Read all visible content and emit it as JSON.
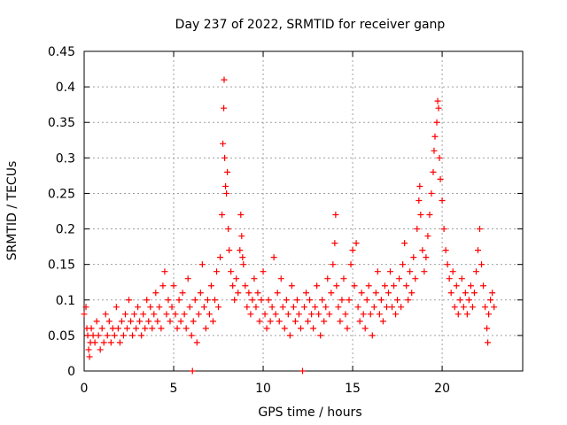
{
  "chart_data": {
    "type": "scatter",
    "title": "Day 237 of 2022, SRMTID for receiver ganp",
    "xlabel": "GPS time / hours",
    "ylabel": "SRMTID / TECUs",
    "xlim": [
      0,
      24.5
    ],
    "ylim": [
      0,
      0.45
    ],
    "x_ticks": [
      0,
      5,
      10,
      15,
      20
    ],
    "x_tick_labels": [
      "0",
      "5",
      "10",
      "15",
      "20"
    ],
    "y_ticks": [
      0,
      0.05,
      0.1,
      0.15,
      0.2,
      0.25,
      0.3,
      0.35,
      0.4,
      0.45
    ],
    "y_tick_labels": [
      "0",
      "0.05",
      "0.1",
      "0.15",
      "0.2",
      "0.25",
      "0.3",
      "0.35",
      "0.4",
      "0.45"
    ],
    "grid": true,
    "marker": "+",
    "color": "#ff0000",
    "series": [
      {
        "name": "SRMTID",
        "points": [
          [
            0.0,
            0.08
          ],
          [
            0.1,
            0.09
          ],
          [
            0.15,
            0.06
          ],
          [
            0.2,
            0.05
          ],
          [
            0.25,
            0.03
          ],
          [
            0.3,
            0.02
          ],
          [
            0.35,
            0.04
          ],
          [
            0.4,
            0.06
          ],
          [
            0.5,
            0.05
          ],
          [
            0.6,
            0.04
          ],
          [
            0.7,
            0.07
          ],
          [
            0.8,
            0.05
          ],
          [
            0.9,
            0.03
          ],
          [
            1.0,
            0.06
          ],
          [
            1.1,
            0.04
          ],
          [
            1.2,
            0.08
          ],
          [
            1.3,
            0.05
          ],
          [
            1.4,
            0.07
          ],
          [
            1.5,
            0.04
          ],
          [
            1.6,
            0.06
          ],
          [
            1.7,
            0.05
          ],
          [
            1.8,
            0.09
          ],
          [
            1.9,
            0.06
          ],
          [
            2.0,
            0.04
          ],
          [
            2.1,
            0.07
          ],
          [
            2.2,
            0.05
          ],
          [
            2.3,
            0.08
          ],
          [
            2.4,
            0.06
          ],
          [
            2.5,
            0.1
          ],
          [
            2.6,
            0.07
          ],
          [
            2.7,
            0.05
          ],
          [
            2.8,
            0.08
          ],
          [
            2.9,
            0.06
          ],
          [
            3.0,
            0.09
          ],
          [
            3.1,
            0.07
          ],
          [
            3.2,
            0.05
          ],
          [
            3.3,
            0.08
          ],
          [
            3.4,
            0.06
          ],
          [
            3.5,
            0.1
          ],
          [
            3.6,
            0.07
          ],
          [
            3.7,
            0.09
          ],
          [
            3.8,
            0.06
          ],
          [
            3.9,
            0.08
          ],
          [
            4.0,
            0.11
          ],
          [
            4.1,
            0.07
          ],
          [
            4.2,
            0.09
          ],
          [
            4.3,
            0.06
          ],
          [
            4.4,
            0.12
          ],
          [
            4.5,
            0.14
          ],
          [
            4.6,
            0.08
          ],
          [
            4.7,
            0.1
          ],
          [
            4.8,
            0.07
          ],
          [
            4.9,
            0.09
          ],
          [
            5.0,
            0.12
          ],
          [
            5.1,
            0.08
          ],
          [
            5.2,
            0.06
          ],
          [
            5.3,
            0.1
          ],
          [
            5.4,
            0.07
          ],
          [
            5.5,
            0.11
          ],
          [
            5.6,
            0.08
          ],
          [
            5.7,
            0.06
          ],
          [
            5.8,
            0.13
          ],
          [
            5.9,
            0.09
          ],
          [
            6.0,
            0.05
          ],
          [
            6.05,
            0.0
          ],
          [
            6.1,
            0.07
          ],
          [
            6.2,
            0.1
          ],
          [
            6.3,
            0.04
          ],
          [
            6.4,
            0.08
          ],
          [
            6.5,
            0.11
          ],
          [
            6.6,
            0.15
          ],
          [
            6.7,
            0.09
          ],
          [
            6.8,
            0.06
          ],
          [
            6.9,
            0.1
          ],
          [
            7.0,
            0.08
          ],
          [
            7.1,
            0.12
          ],
          [
            7.2,
            0.07
          ],
          [
            7.3,
            0.1
          ],
          [
            7.4,
            0.14
          ],
          [
            7.5,
            0.09
          ],
          [
            7.6,
            0.16
          ],
          [
            7.7,
            0.22
          ],
          [
            7.75,
            0.32
          ],
          [
            7.8,
            0.37
          ],
          [
            7.82,
            0.41
          ],
          [
            7.85,
            0.3
          ],
          [
            7.9,
            0.26
          ],
          [
            7.95,
            0.25
          ],
          [
            8.0,
            0.28
          ],
          [
            8.05,
            0.2
          ],
          [
            8.1,
            0.17
          ],
          [
            8.2,
            0.14
          ],
          [
            8.3,
            0.12
          ],
          [
            8.4,
            0.1
          ],
          [
            8.5,
            0.13
          ],
          [
            8.6,
            0.11
          ],
          [
            8.7,
            0.17
          ],
          [
            8.75,
            0.22
          ],
          [
            8.8,
            0.19
          ],
          [
            8.85,
            0.16
          ],
          [
            8.9,
            0.15
          ],
          [
            9.0,
            0.12
          ],
          [
            9.1,
            0.09
          ],
          [
            9.2,
            0.11
          ],
          [
            9.3,
            0.08
          ],
          [
            9.4,
            0.1
          ],
          [
            9.5,
            0.13
          ],
          [
            9.6,
            0.09
          ],
          [
            9.7,
            0.11
          ],
          [
            9.8,
            0.07
          ],
          [
            9.9,
            0.1
          ],
          [
            10.0,
            0.14
          ],
          [
            10.1,
            0.08
          ],
          [
            10.2,
            0.06
          ],
          [
            10.3,
            0.1
          ],
          [
            10.4,
            0.07
          ],
          [
            10.5,
            0.09
          ],
          [
            10.6,
            0.16
          ],
          [
            10.7,
            0.08
          ],
          [
            10.8,
            0.11
          ],
          [
            10.9,
            0.07
          ],
          [
            11.0,
            0.13
          ],
          [
            11.1,
            0.09
          ],
          [
            11.2,
            0.06
          ],
          [
            11.3,
            0.1
          ],
          [
            11.4,
            0.08
          ],
          [
            11.5,
            0.05
          ],
          [
            11.6,
            0.12
          ],
          [
            11.7,
            0.09
          ],
          [
            11.8,
            0.07
          ],
          [
            11.9,
            0.1
          ],
          [
            12.0,
            0.08
          ],
          [
            12.1,
            0.06
          ],
          [
            12.2,
            0.0
          ],
          [
            12.3,
            0.09
          ],
          [
            12.4,
            0.11
          ],
          [
            12.5,
            0.07
          ],
          [
            12.6,
            0.1
          ],
          [
            12.7,
            0.08
          ],
          [
            12.8,
            0.06
          ],
          [
            12.9,
            0.09
          ],
          [
            13.0,
            0.12
          ],
          [
            13.1,
            0.08
          ],
          [
            13.2,
            0.05
          ],
          [
            13.3,
            0.1
          ],
          [
            13.4,
            0.07
          ],
          [
            13.5,
            0.09
          ],
          [
            13.6,
            0.13
          ],
          [
            13.7,
            0.08
          ],
          [
            13.8,
            0.11
          ],
          [
            13.9,
            0.15
          ],
          [
            14.0,
            0.18
          ],
          [
            14.05,
            0.22
          ],
          [
            14.1,
            0.12
          ],
          [
            14.2,
            0.09
          ],
          [
            14.3,
            0.07
          ],
          [
            14.4,
            0.1
          ],
          [
            14.5,
            0.13
          ],
          [
            14.6,
            0.08
          ],
          [
            14.7,
            0.06
          ],
          [
            14.8,
            0.1
          ],
          [
            14.9,
            0.15
          ],
          [
            15.0,
            0.17
          ],
          [
            15.1,
            0.12
          ],
          [
            15.2,
            0.18
          ],
          [
            15.3,
            0.09
          ],
          [
            15.4,
            0.07
          ],
          [
            15.5,
            0.11
          ],
          [
            15.6,
            0.08
          ],
          [
            15.7,
            0.06
          ],
          [
            15.8,
            0.1
          ],
          [
            15.9,
            0.12
          ],
          [
            16.0,
            0.08
          ],
          [
            16.1,
            0.05
          ],
          [
            16.2,
            0.09
          ],
          [
            16.3,
            0.11
          ],
          [
            16.4,
            0.14
          ],
          [
            16.5,
            0.08
          ],
          [
            16.6,
            0.1
          ],
          [
            16.7,
            0.07
          ],
          [
            16.8,
            0.12
          ],
          [
            16.9,
            0.09
          ],
          [
            17.0,
            0.11
          ],
          [
            17.1,
            0.14
          ],
          [
            17.2,
            0.09
          ],
          [
            17.3,
            0.12
          ],
          [
            17.4,
            0.08
          ],
          [
            17.5,
            0.1
          ],
          [
            17.6,
            0.13
          ],
          [
            17.7,
            0.09
          ],
          [
            17.8,
            0.15
          ],
          [
            17.9,
            0.18
          ],
          [
            18.0,
            0.12
          ],
          [
            18.1,
            0.1
          ],
          [
            18.2,
            0.14
          ],
          [
            18.3,
            0.11
          ],
          [
            18.4,
            0.16
          ],
          [
            18.5,
            0.13
          ],
          [
            18.6,
            0.2
          ],
          [
            18.7,
            0.24
          ],
          [
            18.75,
            0.26
          ],
          [
            18.8,
            0.22
          ],
          [
            18.9,
            0.17
          ],
          [
            19.0,
            0.14
          ],
          [
            19.1,
            0.16
          ],
          [
            19.2,
            0.19
          ],
          [
            19.3,
            0.22
          ],
          [
            19.4,
            0.25
          ],
          [
            19.5,
            0.28
          ],
          [
            19.55,
            0.31
          ],
          [
            19.6,
            0.33
          ],
          [
            19.7,
            0.35
          ],
          [
            19.75,
            0.38
          ],
          [
            19.8,
            0.37
          ],
          [
            19.85,
            0.3
          ],
          [
            19.9,
            0.27
          ],
          [
            20.0,
            0.24
          ],
          [
            20.1,
            0.2
          ],
          [
            20.2,
            0.17
          ],
          [
            20.3,
            0.15
          ],
          [
            20.4,
            0.13
          ],
          [
            20.5,
            0.11
          ],
          [
            20.6,
            0.14
          ],
          [
            20.7,
            0.09
          ],
          [
            20.8,
            0.12
          ],
          [
            20.9,
            0.08
          ],
          [
            21.0,
            0.1
          ],
          [
            21.1,
            0.13
          ],
          [
            21.2,
            0.09
          ],
          [
            21.3,
            0.11
          ],
          [
            21.4,
            0.08
          ],
          [
            21.5,
            0.1
          ],
          [
            21.6,
            0.12
          ],
          [
            21.7,
            0.09
          ],
          [
            21.8,
            0.11
          ],
          [
            21.9,
            0.14
          ],
          [
            22.0,
            0.17
          ],
          [
            22.1,
            0.2
          ],
          [
            22.2,
            0.15
          ],
          [
            22.3,
            0.12
          ],
          [
            22.4,
            0.09
          ],
          [
            22.5,
            0.06
          ],
          [
            22.55,
            0.04
          ],
          [
            22.6,
            0.08
          ],
          [
            22.7,
            0.1
          ],
          [
            22.8,
            0.11
          ],
          [
            22.9,
            0.09
          ]
        ]
      }
    ]
  }
}
